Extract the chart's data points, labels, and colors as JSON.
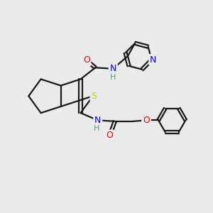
{
  "bg_color": "#ebebeb",
  "bond_color": "#1a1a1a",
  "bond_width": 1.6,
  "N_color": "#0000ff",
  "S_color": "#cccc00",
  "O_color": "#ff0000",
  "H_color": "#4d9999",
  "figsize": [
    3.0,
    3.0
  ],
  "dpi": 100,
  "xlim": [
    0,
    10
  ],
  "ylim": [
    0,
    10
  ]
}
